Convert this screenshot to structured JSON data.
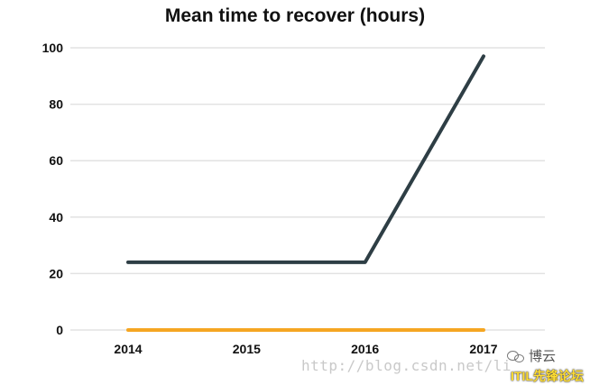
{
  "chart_data": {
    "type": "line",
    "title": "Mean time to recover (hours)",
    "categories": [
      "2014",
      "2015",
      "2016",
      "2017"
    ],
    "series": [
      {
        "color": "#2e3e45",
        "values": [
          24,
          24,
          24,
          97
        ]
      },
      {
        "color": "#f5a623",
        "values": [
          0,
          0,
          0,
          0
        ]
      }
    ],
    "ylim": [
      0,
      100
    ],
    "yticks": [
      0,
      20,
      40,
      60,
      80,
      100
    ],
    "grid": true,
    "grid_color": "#e2e2e2"
  },
  "watermark": {
    "url": "http://blog.csdn.net/li",
    "brand": "博云",
    "forum": "ITIL先锋论坛"
  }
}
